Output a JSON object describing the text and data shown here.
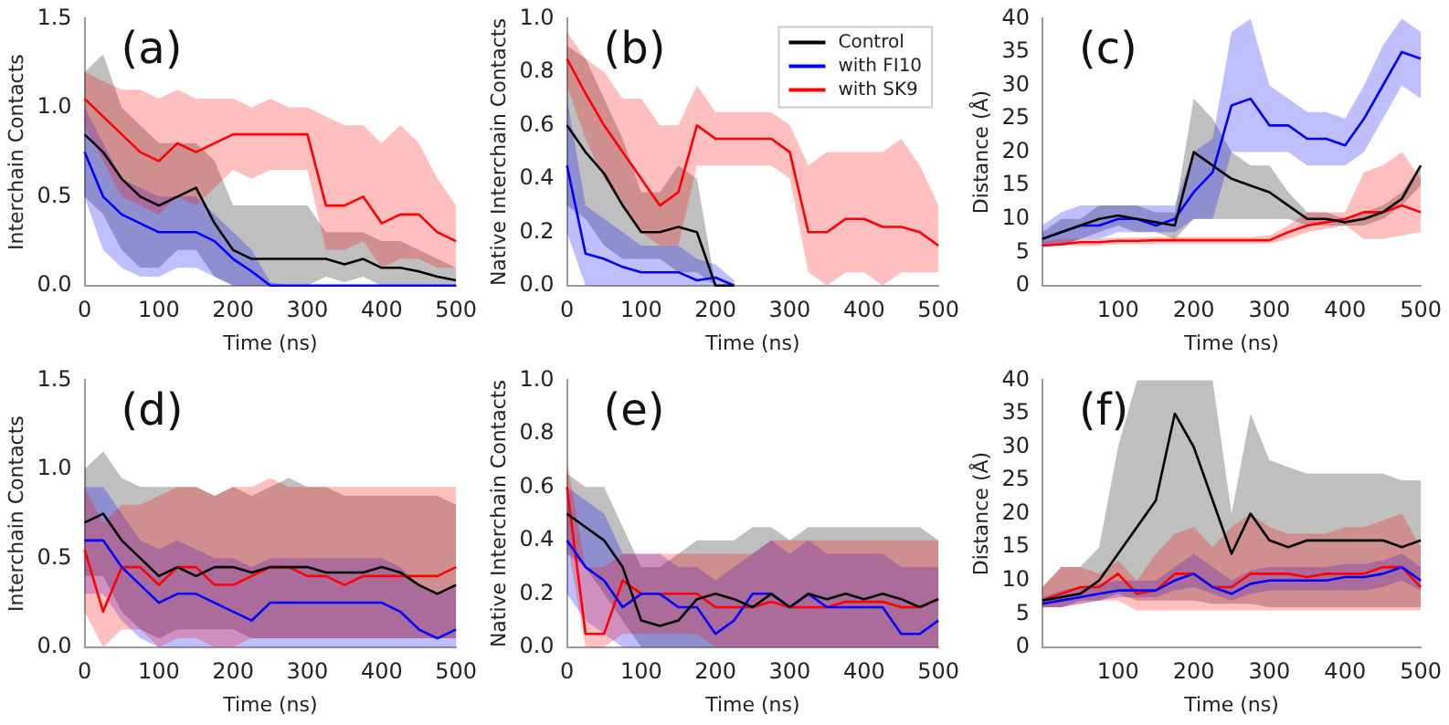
{
  "chart_data": [
    {
      "type": "line",
      "xlabel": "Time (ns)",
      "ylabel": "Interchain Contacts",
      "annotations": [
        "(a)"
      ],
      "xlim": [
        0,
        500
      ],
      "xticks": [
        0,
        100,
        200,
        300,
        400,
        500
      ],
      "ylim": [
        0,
        1.5
      ],
      "yticks": [
        {
          "value": 0,
          "label": "0.0"
        },
        {
          "value": 0.5,
          "label": "0.5"
        },
        {
          "value": 1,
          "label": "1.0"
        },
        {
          "value": 1.5,
          "label": "1.5"
        }
      ],
      "x": [
        0,
        25,
        50,
        75,
        100,
        125,
        150,
        175,
        200,
        225,
        250,
        275,
        300,
        325,
        350,
        375,
        400,
        425,
        450,
        475,
        500
      ],
      "series": [
        {
          "color": "#000000",
          "values": [
            0.85,
            0.75,
            0.6,
            0.5,
            0.45,
            0.5,
            0.55,
            0.35,
            0.2,
            0.15,
            0.15,
            0.15,
            0.15,
            0.15,
            0.12,
            0.15,
            0.1,
            0.1,
            0.08,
            0.05,
            0.03
          ],
          "upper": [
            1.2,
            1.3,
            1.0,
            0.9,
            0.8,
            0.8,
            0.8,
            0.7,
            0.45,
            0.45,
            0.45,
            0.45,
            0.45,
            0.3,
            0.3,
            0.3,
            0.25,
            0.25,
            0.2,
            0.15,
            0.1
          ],
          "lower": [
            0.5,
            0.4,
            0.2,
            0.1,
            0.1,
            0.2,
            0.2,
            0.05,
            0,
            0,
            0,
            0,
            0,
            0.05,
            0.02,
            0.05,
            0,
            0,
            0,
            0,
            0
          ]
        },
        {
          "color": "#0000ff",
          "values": [
            0.75,
            0.5,
            0.4,
            0.35,
            0.3,
            0.3,
            0.3,
            0.25,
            0.15,
            0.08,
            0,
            0,
            0,
            0,
            0,
            0,
            0,
            0,
            0,
            0,
            0
          ],
          "upper": [
            1.0,
            0.8,
            0.6,
            0.55,
            0.5,
            0.5,
            0.5,
            0.4,
            0.3,
            0.2,
            0.02,
            0,
            0,
            0,
            0,
            0,
            0,
            0,
            0,
            0,
            0
          ],
          "lower": [
            0.5,
            0.2,
            0.1,
            0.05,
            0.05,
            0.1,
            0.1,
            0.05,
            0,
            0,
            0,
            0,
            0,
            0,
            0,
            0,
            0,
            0,
            0,
            0,
            0
          ]
        },
        {
          "color": "#ff0000",
          "values": [
            1.05,
            0.95,
            0.85,
            0.75,
            0.7,
            0.8,
            0.75,
            0.8,
            0.85,
            0.85,
            0.85,
            0.85,
            0.85,
            0.45,
            0.45,
            0.5,
            0.35,
            0.4,
            0.4,
            0.3,
            0.25
          ],
          "upper": [
            1.2,
            1.15,
            1.1,
            1.1,
            1.05,
            1.1,
            1.05,
            1.05,
            1.05,
            1.0,
            1.05,
            1.0,
            1.0,
            0.95,
            0.9,
            0.9,
            0.8,
            0.9,
            0.8,
            0.6,
            0.45
          ],
          "lower": [
            0.9,
            0.7,
            0.5,
            0.45,
            0.4,
            0.5,
            0.45,
            0.55,
            0.65,
            0.6,
            0.65,
            0.65,
            0.65,
            0.2,
            0.2,
            0.25,
            0.1,
            0.15,
            0.15,
            0.1,
            0.1
          ]
        }
      ]
    },
    {
      "type": "line",
      "xlabel": "Time (ns)",
      "ylabel": "Native Interchain Contacts",
      "annotations": [
        "(b)"
      ],
      "legend": "top right",
      "xlim": [
        0,
        500
      ],
      "xticks": [
        0,
        100,
        200,
        300,
        400,
        500
      ],
      "ylim": [
        0,
        1
      ],
      "yticks": [
        {
          "value": 0,
          "label": "0.0"
        },
        {
          "value": 0.2,
          "label": "0.2"
        },
        {
          "value": 0.4,
          "label": "0.4"
        },
        {
          "value": 0.6,
          "label": "0.6"
        },
        {
          "value": 0.8,
          "label": "0.8"
        },
        {
          "value": 1,
          "label": "1.0"
        }
      ],
      "x": [
        0,
        25,
        50,
        75,
        100,
        125,
        150,
        175,
        200,
        225,
        250,
        275,
        300,
        325,
        350,
        375,
        400,
        425,
        450,
        475,
        500
      ],
      "series": [
        {
          "name": "Control",
          "color": "#000000",
          "values": [
            0.6,
            0.5,
            0.42,
            0.3,
            0.2,
            0.2,
            0.22,
            0.2,
            0,
            0,
            null,
            null,
            null,
            null,
            null,
            null,
            null,
            null,
            null,
            null,
            null
          ],
          "upper": [
            0.9,
            0.85,
            0.7,
            0.55,
            0.35,
            0.35,
            0.45,
            0.4,
            0,
            0,
            null,
            null,
            null,
            null,
            null,
            null,
            null,
            null,
            null,
            null,
            null
          ],
          "lower": [
            0.3,
            0.25,
            0.15,
            0.1,
            0.1,
            0.1,
            0.05,
            0.05,
            0,
            0,
            null,
            null,
            null,
            null,
            null,
            null,
            null,
            null,
            null,
            null,
            null
          ]
        },
        {
          "name": "with FI10",
          "color": "#0000ff",
          "values": [
            0.45,
            0.12,
            0.1,
            0.07,
            0.05,
            0.05,
            0.05,
            0.02,
            0.03,
            0,
            null,
            null,
            null,
            null,
            null,
            null,
            null,
            null,
            null,
            null,
            null
          ],
          "upper": [
            0.7,
            0.3,
            0.25,
            0.2,
            0.15,
            0.15,
            0.15,
            0.1,
            0.08,
            0.02,
            null,
            null,
            null,
            null,
            null,
            null,
            null,
            null,
            null,
            null,
            null
          ],
          "lower": [
            0.2,
            0,
            0,
            0,
            0,
            0,
            0,
            0,
            0,
            0,
            null,
            null,
            null,
            null,
            null,
            null,
            null,
            null,
            null,
            null,
            null
          ]
        },
        {
          "name": "with SK9",
          "color": "#ff0000",
          "values": [
            0.85,
            0.72,
            0.6,
            0.5,
            0.4,
            0.3,
            0.35,
            0.6,
            0.55,
            0.55,
            0.55,
            0.55,
            0.5,
            0.2,
            0.2,
            0.25,
            0.25,
            0.22,
            0.22,
            0.2,
            0.15
          ],
          "upper": [
            0.95,
            0.85,
            0.8,
            0.7,
            0.7,
            0.6,
            0.6,
            0.75,
            0.65,
            0.65,
            0.65,
            0.65,
            0.6,
            0.45,
            0.5,
            0.5,
            0.5,
            0.5,
            0.55,
            0.45,
            0.3
          ],
          "lower": [
            0.75,
            0.55,
            0.4,
            0.3,
            0.2,
            0.15,
            0.15,
            0.45,
            0.45,
            0.45,
            0.45,
            0.45,
            0.4,
            0.05,
            0,
            0.05,
            0.05,
            0,
            0.05,
            0.05,
            0.05
          ]
        }
      ]
    },
    {
      "type": "line",
      "xlabel": "Time (ns)",
      "ylabel": "Distance (Å)",
      "annotations": [
        "(c)"
      ],
      "xlim": [
        0,
        500
      ],
      "xticks": [
        100,
        200,
        300,
        400,
        500
      ],
      "ylim": [
        0,
        40
      ],
      "yticks": [
        0,
        5,
        10,
        15,
        20,
        25,
        30,
        35,
        40
      ],
      "x": [
        0,
        25,
        50,
        75,
        100,
        125,
        150,
        175,
        200,
        225,
        250,
        275,
        300,
        325,
        350,
        375,
        400,
        425,
        450,
        475,
        500
      ],
      "series": [
        {
          "color": "#000000",
          "values": [
            7,
            8,
            9,
            10,
            10.5,
            10,
            9.5,
            9,
            20,
            18,
            16,
            15,
            14,
            12,
            10,
            10,
            9.5,
            10,
            11,
            13,
            18
          ],
          "upper": [
            8,
            10,
            10,
            12,
            12,
            12,
            11,
            11,
            28,
            25,
            20,
            18,
            18,
            14,
            11,
            11,
            10,
            11,
            12,
            14,
            18
          ],
          "lower": [
            6,
            6,
            7,
            8,
            9,
            8,
            8,
            7,
            10,
            10,
            10,
            10,
            10,
            10,
            9,
            9,
            9,
            9,
            10,
            12,
            15
          ]
        },
        {
          "color": "#0000ff",
          "values": [
            7,
            8,
            9,
            9,
            10,
            10,
            9,
            10,
            14,
            17,
            27,
            28,
            24,
            24,
            22,
            22,
            21,
            25,
            30,
            35,
            34
          ],
          "upper": [
            9,
            11,
            12,
            12,
            12,
            12,
            12,
            12,
            20,
            22,
            38,
            40,
            30,
            28,
            26,
            26,
            25,
            30,
            36,
            40,
            38
          ],
          "lower": [
            6,
            6,
            7,
            7,
            8,
            8,
            8,
            8,
            10,
            10,
            20,
            20,
            20,
            20,
            18,
            18,
            18,
            20,
            25,
            30,
            28
          ]
        },
        {
          "color": "#ff0000",
          "values": [
            6,
            6.2,
            6.5,
            6.5,
            6.7,
            6.7,
            6.8,
            6.8,
            6.8,
            6.8,
            6.8,
            6.8,
            6.8,
            8,
            9,
            9.5,
            10,
            11,
            11,
            12,
            11
          ],
          "upper": [
            6.5,
            7,
            7,
            7,
            7.2,
            7.2,
            7.3,
            7.3,
            7.3,
            7.3,
            7.3,
            7.3,
            7.5,
            9,
            11,
            11,
            11,
            17,
            18,
            20,
            16
          ],
          "lower": [
            5.8,
            6,
            6,
            6,
            6.2,
            6.2,
            6.3,
            6.3,
            6.3,
            6.3,
            6.3,
            6.3,
            6.3,
            7,
            8,
            8.5,
            9,
            7,
            7,
            7.5,
            8
          ]
        }
      ]
    },
    {
      "type": "line",
      "xlabel": "Time (ns)",
      "ylabel": "Interchain Contacts",
      "annotations": [
        "(d)"
      ],
      "xlim": [
        0,
        500
      ],
      "xticks": [
        0,
        100,
        200,
        300,
        400,
        500
      ],
      "ylim": [
        0,
        1.5
      ],
      "yticks": [
        {
          "value": 0,
          "label": "0.0"
        },
        {
          "value": 0.5,
          "label": "0.5"
        },
        {
          "value": 1,
          "label": "1.0"
        },
        {
          "value": 1.5,
          "label": "1.5"
        }
      ],
      "x": [
        0,
        25,
        50,
        75,
        100,
        125,
        150,
        175,
        200,
        225,
        250,
        275,
        300,
        325,
        350,
        375,
        400,
        425,
        450,
        475,
        500
      ],
      "series": [
        {
          "color": "#000000",
          "values": [
            0.7,
            0.75,
            0.6,
            0.5,
            0.4,
            0.45,
            0.4,
            0.45,
            0.45,
            0.42,
            0.45,
            0.45,
            0.45,
            0.42,
            0.42,
            0.42,
            0.45,
            0.42,
            0.35,
            0.3,
            0.35
          ],
          "upper": [
            1.0,
            1.1,
            0.95,
            0.9,
            0.9,
            0.9,
            0.9,
            0.85,
            0.9,
            0.85,
            0.9,
            0.95,
            0.9,
            0.9,
            0.85,
            0.85,
            0.85,
            0.85,
            0.85,
            0.85,
            0.8
          ],
          "lower": [
            0.4,
            0.4,
            0.2,
            0.1,
            0.05,
            0.1,
            0.1,
            0.1,
            0.1,
            0.05,
            0.05,
            0.05,
            0.05,
            0.05,
            0.05,
            0.05,
            0.05,
            0.05,
            0.05,
            0.05,
            0.05
          ]
        },
        {
          "color": "#0000ff",
          "values": [
            0.6,
            0.6,
            0.45,
            0.35,
            0.25,
            0.3,
            0.3,
            0.25,
            0.2,
            0.15,
            0.25,
            0.25,
            0.25,
            0.25,
            0.25,
            0.25,
            0.25,
            0.2,
            0.1,
            0.05,
            0.1
          ],
          "upper": [
            0.9,
            0.9,
            0.75,
            0.6,
            0.55,
            0.6,
            0.55,
            0.5,
            0.5,
            0.45,
            0.5,
            0.5,
            0.5,
            0.5,
            0.5,
            0.5,
            0.5,
            0.45,
            0.35,
            0.3,
            0.35
          ],
          "lower": [
            0.3,
            0.3,
            0.15,
            0.05,
            0,
            0,
            0,
            0,
            0,
            0,
            0,
            0,
            0,
            0,
            0,
            0,
            0,
            0,
            0,
            0,
            0
          ]
        },
        {
          "color": "#ff0000",
          "values": [
            0.55,
            0.2,
            0.45,
            0.45,
            0.35,
            0.45,
            0.45,
            0.35,
            0.35,
            0.4,
            0.45,
            0.45,
            0.4,
            0.4,
            0.35,
            0.4,
            0.4,
            0.4,
            0.4,
            0.4,
            0.45
          ],
          "upper": [
            0.9,
            0.7,
            0.8,
            0.8,
            0.85,
            0.9,
            0.9,
            0.85,
            0.9,
            0.9,
            0.95,
            0.9,
            0.9,
            0.9,
            0.9,
            0.9,
            0.9,
            0.9,
            0.9,
            0.9,
            0.9
          ],
          "lower": [
            0.2,
            0,
            0.1,
            0.1,
            0,
            0.05,
            0.05,
            0,
            0,
            0.05,
            0.05,
            0.05,
            0.05,
            0.05,
            0.05,
            0.05,
            0.05,
            0.05,
            0.05,
            0.05,
            0.05
          ]
        }
      ]
    },
    {
      "type": "line",
      "xlabel": "Time (ns)",
      "ylabel": "Native Interchain Contacts",
      "annotations": [
        "(e)"
      ],
      "xlim": [
        0,
        500
      ],
      "xticks": [
        0,
        100,
        200,
        300,
        400,
        500
      ],
      "ylim": [
        0,
        1
      ],
      "yticks": [
        {
          "value": 0,
          "label": "0.0"
        },
        {
          "value": 0.2,
          "label": "0.2"
        },
        {
          "value": 0.4,
          "label": "0.4"
        },
        {
          "value": 0.6,
          "label": "0.6"
        },
        {
          "value": 0.8,
          "label": "0.8"
        },
        {
          "value": 1,
          "label": "1.0"
        }
      ],
      "x": [
        0,
        25,
        50,
        75,
        100,
        125,
        150,
        175,
        200,
        225,
        250,
        275,
        300,
        325,
        350,
        375,
        400,
        425,
        450,
        475,
        500
      ],
      "series": [
        {
          "color": "#000000",
          "values": [
            0.5,
            0.45,
            0.4,
            0.3,
            0.1,
            0.08,
            0.1,
            0.18,
            0.2,
            0.18,
            0.15,
            0.2,
            0.15,
            0.2,
            0.18,
            0.2,
            0.18,
            0.2,
            0.18,
            0.15,
            0.18
          ],
          "upper": [
            0.65,
            0.6,
            0.6,
            0.45,
            0.3,
            0.3,
            0.35,
            0.4,
            0.4,
            0.4,
            0.45,
            0.45,
            0.4,
            0.45,
            0.45,
            0.45,
            0.45,
            0.45,
            0.45,
            0.45,
            0.4
          ],
          "lower": [
            0.35,
            0.3,
            0.2,
            0.1,
            0,
            0,
            0,
            0,
            0,
            0,
            0,
            0,
            0,
            0,
            0,
            0,
            0,
            0,
            0,
            0,
            0
          ]
        },
        {
          "color": "#0000ff",
          "values": [
            0.4,
            0.3,
            0.25,
            0.15,
            0.2,
            0.2,
            0.15,
            0.15,
            0.05,
            0.1,
            0.2,
            0.2,
            0.15,
            0.2,
            0.15,
            0.15,
            0.15,
            0.15,
            0.05,
            0.05,
            0.1
          ],
          "upper": [
            0.6,
            0.55,
            0.5,
            0.35,
            0.35,
            0.35,
            0.3,
            0.3,
            0.25,
            0.3,
            0.35,
            0.4,
            0.35,
            0.4,
            0.35,
            0.35,
            0.35,
            0.35,
            0.3,
            0.3,
            0.3
          ],
          "lower": [
            0.2,
            0.1,
            0.05,
            0,
            0,
            0,
            0,
            0,
            0,
            0,
            0,
            0,
            0,
            0,
            0,
            0,
            0,
            0,
            0,
            0,
            0
          ]
        },
        {
          "color": "#ff0000",
          "values": [
            0.6,
            0.05,
            0.05,
            0.25,
            0.2,
            0.2,
            0.2,
            0.2,
            0.15,
            0.15,
            0.15,
            0.17,
            0.15,
            0.15,
            0.15,
            0.17,
            0.17,
            0.17,
            0.15,
            0.15,
            0.18
          ],
          "upper": [
            0.7,
            0.3,
            0.3,
            0.35,
            0.35,
            0.35,
            0.35,
            0.35,
            0.35,
            0.35,
            0.35,
            0.4,
            0.4,
            0.4,
            0.4,
            0.4,
            0.4,
            0.4,
            0.4,
            0.4,
            0.4
          ],
          "lower": [
            0.4,
            0,
            0,
            0.05,
            0.05,
            0.05,
            0.05,
            0.05,
            0,
            0,
            0,
            0,
            0,
            0,
            0,
            0,
            0,
            0,
            0,
            0,
            0
          ]
        }
      ]
    },
    {
      "type": "line",
      "xlabel": "Time (ns)",
      "ylabel": "Distance (Å)",
      "annotations": [
        "(f)"
      ],
      "xlim": [
        0,
        500
      ],
      "xticks": [
        100,
        200,
        300,
        400,
        500
      ],
      "ylim": [
        0,
        40
      ],
      "yticks": [
        0,
        5,
        10,
        15,
        20,
        25,
        30,
        35,
        40
      ],
      "x": [
        0,
        25,
        50,
        75,
        100,
        125,
        150,
        175,
        200,
        225,
        250,
        275,
        300,
        325,
        350,
        375,
        400,
        425,
        450,
        475,
        500
      ],
      "series": [
        {
          "color": "#000000",
          "values": [
            7,
            7.5,
            8,
            10,
            14,
            18,
            22,
            35,
            30,
            22,
            14,
            20,
            16,
            15,
            16,
            16,
            16,
            16,
            16,
            15,
            16
          ],
          "upper": [
            9,
            12,
            12,
            15,
            30,
            40,
            40,
            40,
            40,
            40,
            20,
            35,
            28,
            27,
            26,
            26,
            26,
            26,
            26,
            25,
            25
          ],
          "lower": [
            6,
            6,
            7,
            7,
            8,
            7,
            7,
            7,
            7,
            6.5,
            6.5,
            6.5,
            6,
            6,
            6,
            6,
            6,
            6,
            6,
            6,
            6
          ]
        },
        {
          "color": "#0000ff",
          "values": [
            6.5,
            7,
            7.5,
            8,
            8.5,
            8.5,
            8.5,
            10,
            11,
            9,
            8,
            9.5,
            10,
            10,
            10,
            10,
            10.5,
            10.5,
            11,
            12,
            10
          ],
          "upper": [
            7.5,
            8.5,
            9,
            9.5,
            10,
            10,
            10,
            12,
            14,
            12,
            10,
            11.5,
            12,
            12,
            12,
            12,
            12.5,
            12.5,
            13,
            14,
            12
          ],
          "lower": [
            6,
            6,
            6.5,
            7,
            7.5,
            7.5,
            7.5,
            8.5,
            9,
            8,
            7,
            8,
            8.5,
            8.5,
            8.5,
            8.5,
            8.5,
            8.5,
            9,
            10,
            8.5
          ]
        },
        {
          "color": "#ff0000",
          "values": [
            7,
            8,
            9,
            9,
            11,
            8,
            8.5,
            11,
            11,
            9,
            9,
            11,
            11,
            11,
            10.5,
            11,
            11,
            11,
            12,
            12,
            9
          ],
          "upper": [
            9,
            12,
            12,
            11,
            13,
            10,
            14,
            17,
            18,
            15,
            18,
            20,
            18,
            17,
            17,
            17,
            18,
            18,
            19,
            20,
            15
          ],
          "lower": [
            6,
            6,
            6.5,
            7,
            7,
            5.5,
            5.5,
            5.5,
            5.5,
            5.5,
            5.5,
            5.5,
            5.5,
            5.5,
            5.5,
            5.5,
            5.5,
            5.5,
            5.5,
            5.5,
            5.5
          ]
        }
      ]
    }
  ]
}
